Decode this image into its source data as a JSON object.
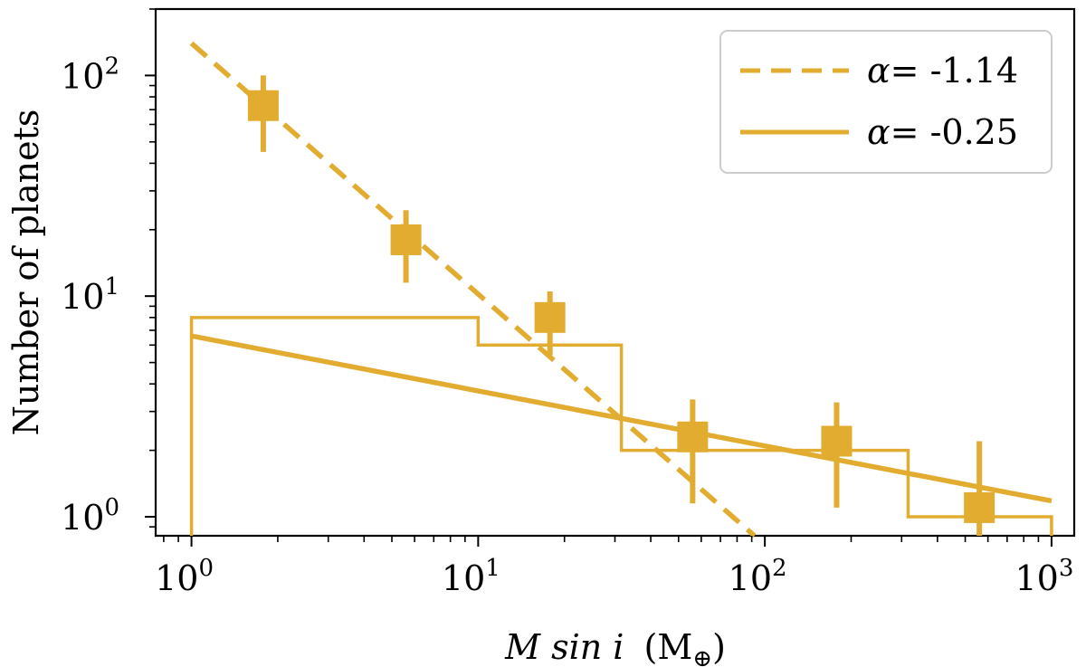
{
  "chart_data": {
    "type": "scatter",
    "title": "",
    "xlabel": {
      "main": "M sin i",
      "unit_open": "(M",
      "unit_sub": "⊕",
      "unit_close": ")"
    },
    "ylabel": "Number of planets",
    "xscale": "log",
    "yscale": "log",
    "xlim": [
      0.75,
      1200
    ],
    "ylim": [
      0.82,
      200
    ],
    "x_ticks": [
      {
        "value": 1,
        "base": "10",
        "exp": "0"
      },
      {
        "value": 10,
        "base": "10",
        "exp": "1"
      },
      {
        "value": 100,
        "base": "10",
        "exp": "2"
      },
      {
        "value": 1000,
        "base": "10",
        "exp": "3"
      }
    ],
    "y_ticks": [
      {
        "value": 1,
        "base": "10",
        "exp": "0"
      },
      {
        "value": 10,
        "base": "10",
        "exp": "1"
      },
      {
        "value": 100,
        "base": "10",
        "exp": "2"
      }
    ],
    "color": "#e2ac30",
    "points": [
      {
        "x": 1.78,
        "y": 73,
        "yerr_low": 45,
        "yerr_high": 100
      },
      {
        "x": 5.6,
        "y": 18,
        "yerr_low": 11.5,
        "yerr_high": 24.5
      },
      {
        "x": 17.8,
        "y": 8,
        "yerr_low": 5.4,
        "yerr_high": 10.5
      },
      {
        "x": 56,
        "y": 2.3,
        "yerr_low": 1.15,
        "yerr_high": 3.4
      },
      {
        "x": 178,
        "y": 2.2,
        "yerr_low": 1.1,
        "yerr_high": 3.3
      },
      {
        "x": 560,
        "y": 1.1,
        "yerr_low": 0.82,
        "yerr_high": 2.2
      }
    ],
    "histogram": {
      "edges": [
        1,
        10,
        31.6,
        316,
        1000
      ],
      "counts": [
        8,
        6,
        2,
        1
      ]
    },
    "fits": [
      {
        "name": "fit-steep",
        "style": "dashed",
        "alpha_label": "α",
        "alpha_value": "= -1.14",
        "x_start": 1,
        "y_start": 140,
        "x_end": 92,
        "y_end": 0.82
      },
      {
        "name": "fit-shallow",
        "style": "solid",
        "alpha_label": "α",
        "alpha_value": "= -0.25",
        "x_start": 1,
        "y_start": 6.6,
        "x_end": 1000,
        "y_end": 1.18
      }
    ],
    "legend_position": "top-right",
    "grid": false
  }
}
